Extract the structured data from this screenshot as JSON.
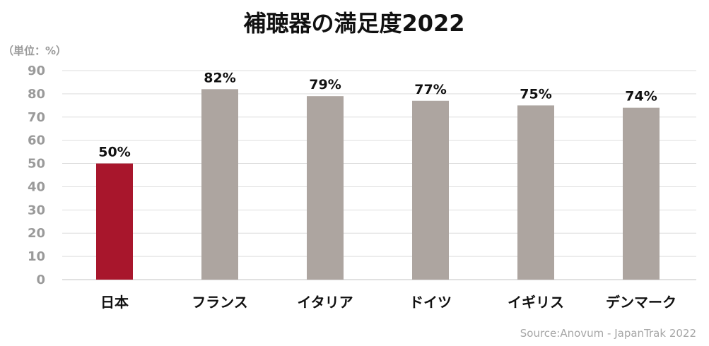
{
  "chart_data": {
    "type": "bar",
    "title": "補聴器の満足度2022",
    "unit_label": "（単位：%）",
    "categories": [
      "日本",
      "フランス",
      "イタリア",
      "ドイツ",
      "イギリス",
      "デンマーク"
    ],
    "values": [
      50,
      82,
      79,
      77,
      75,
      74
    ],
    "data_labels": [
      "50%",
      "82%",
      "79%",
      "77%",
      "75%",
      "74%"
    ],
    "ylim": [
      0,
      90
    ],
    "yticks": [
      0,
      10,
      20,
      30,
      40,
      50,
      60,
      70,
      80,
      90
    ],
    "grid": true,
    "legend": "none",
    "bar_colors": [
      "#a8162c",
      "#ada5a0",
      "#ada5a0",
      "#ada5a0",
      "#ada5a0",
      "#ada5a0"
    ],
    "source": "Source:Anovum - JapanTrak 2022"
  }
}
